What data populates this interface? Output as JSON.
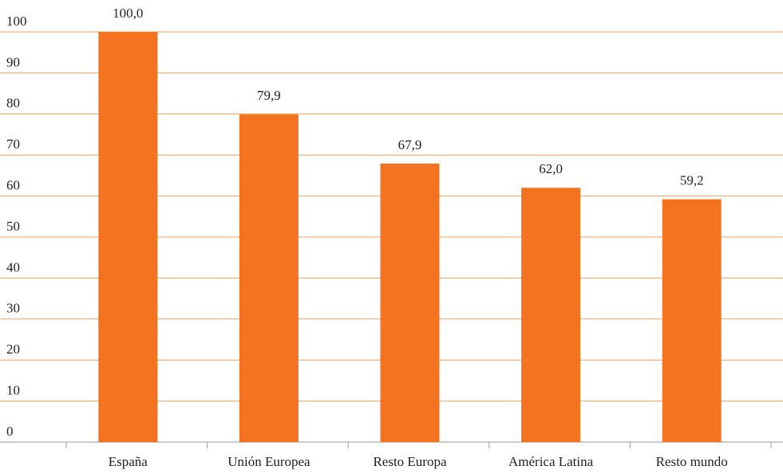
{
  "chart_data": {
    "type": "bar",
    "categories": [
      "España",
      "Unión Europea",
      "Resto Europa",
      "América Latina",
      "Resto mundo"
    ],
    "values": [
      100.0,
      79.9,
      67.9,
      62.0,
      59.2
    ],
    "value_labels": [
      "100,0",
      "79,9",
      "67,9",
      "62,0",
      "59,2"
    ],
    "color": "#f47321",
    "ylim": [
      0,
      100
    ],
    "yticks": [
      0,
      10,
      20,
      30,
      40,
      50,
      60,
      70,
      80,
      90,
      100
    ],
    "grid": true
  }
}
